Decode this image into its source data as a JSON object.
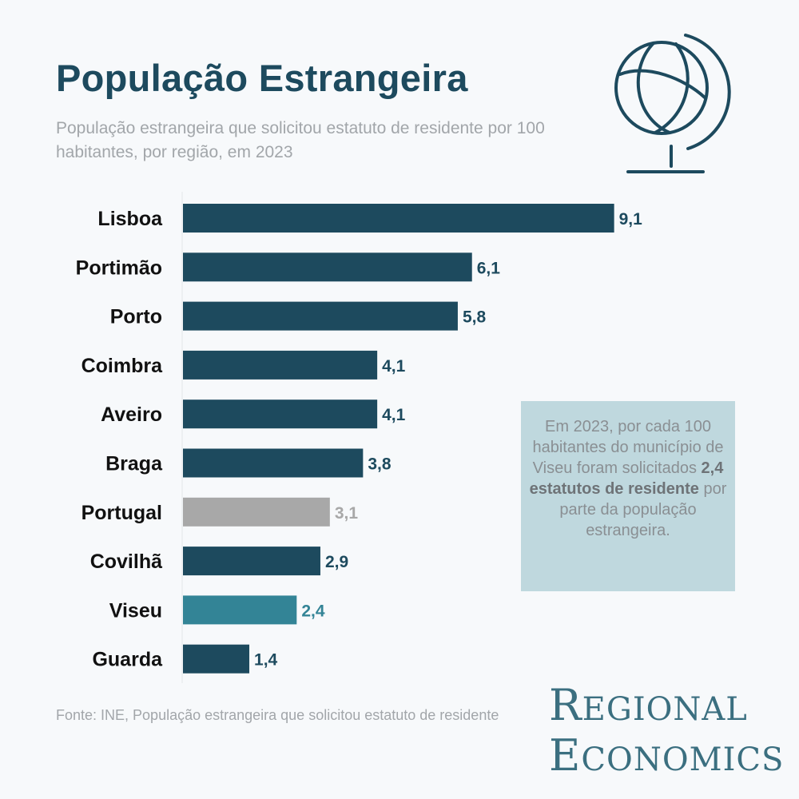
{
  "title": "População Estrangeira",
  "subtitle": "População estrangeira que solicitou estatuto de residente por 100 habitantes, por região, em 2023",
  "callout": {
    "text_before": "Em 2023, por cada 100 habitantes do município de Viseu foram solicitados ",
    "bold": "2,4 estatutos de residente",
    "text_after": " por parte da população estrangeira."
  },
  "source": "Fonte: INE, População estrangeira que solicitou estatuto de residente",
  "logo": {
    "line1_first": "R",
    "line1_rest": "egional",
    "line2_first": "E",
    "line2_rest": "conomics"
  },
  "colors": {
    "bar": "#1d4a5e",
    "bar_national": "#a8a8a8",
    "bar_highlight": "#338496",
    "title": "#1d4a5e",
    "callout_bg": "#bfd8de"
  },
  "icon": "globe-icon",
  "chart_data": {
    "type": "bar",
    "orientation": "horizontal",
    "title": "População Estrangeira",
    "categories": [
      "Lisboa",
      "Portimão",
      "Porto",
      "Coimbra",
      "Aveiro",
      "Braga",
      "Portugal",
      "Covilhã",
      "Viseu",
      "Guarda"
    ],
    "values": [
      9.1,
      6.1,
      5.8,
      4.1,
      4.1,
      3.8,
      3.1,
      2.9,
      2.4,
      1.4
    ],
    "labels": [
      "9,1",
      "6,1",
      "5,8",
      "4,1",
      "4,1",
      "3,8",
      "3,1",
      "2,9",
      "2,4",
      "1,4"
    ],
    "highlight": {
      "Portugal": "national",
      "Viseu": "highlight"
    },
    "xlim": [
      0,
      9.1
    ],
    "grid": false
  }
}
